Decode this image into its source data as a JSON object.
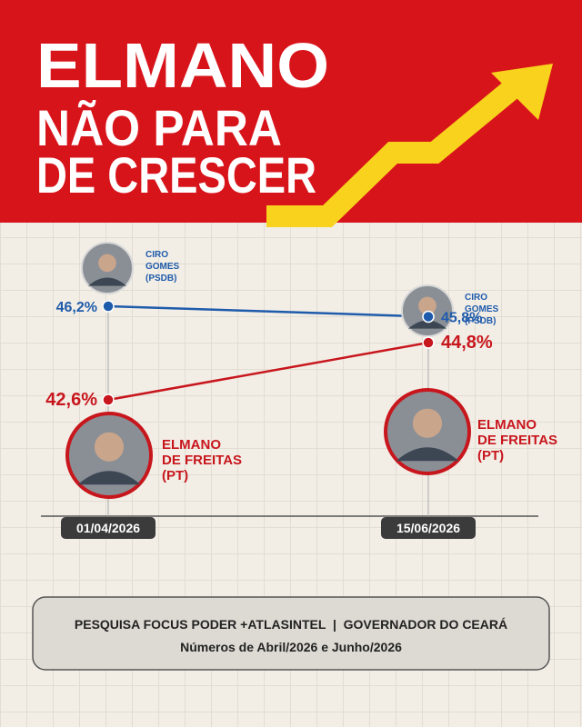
{
  "chart_data": {
    "type": "line",
    "title_lines": [
      "ELMANO",
      "NÃO PARA",
      "DE CRESCER"
    ],
    "categories": [
      "01/04/2026",
      "15/06/2026"
    ],
    "series": [
      {
        "label": [
          "CIRO",
          "GOMES",
          "(PSDB)"
        ],
        "color": "#1f5bab",
        "values": [
          46.2,
          45.8
        ],
        "value_labels": [
          "46,2%",
          "45,8%"
        ]
      },
      {
        "label": [
          "ELMANO",
          "DE FREITAS",
          "(PT)"
        ],
        "color": "#c8161d",
        "values": [
          42.6,
          44.8
        ],
        "value_labels": [
          "42,6%",
          "44,8%"
        ]
      }
    ],
    "source": "PESQUISA FOCUS PODER +ATLASINTEL  |  GOVERNADOR DO CEARÁ",
    "note": "Números de Abril/2026 e Junho/2026"
  }
}
